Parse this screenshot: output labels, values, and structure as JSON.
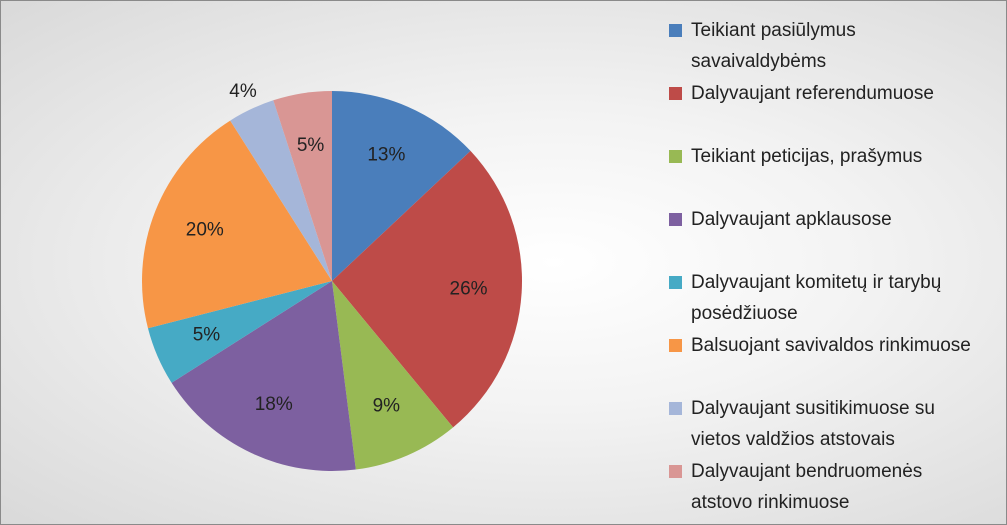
{
  "chart_data": {
    "type": "pie",
    "categories": [
      "Teikiant pasiūlymus savaivaldybėms",
      "Dalyvaujant referendumuose",
      "Teikiant peticijas, prašymus",
      "Dalyvaujant apklausose",
      "Dalyvaujant komitetų ir tarybų posėdžiuose",
      "Balsuojant savivaldos rinkimuose",
      "Dalyvaujant susitikimuose su vietos valdžios atstovais",
      "Dalyvaujant bendruomenės atstovo rinkimuose"
    ],
    "values": [
      13,
      26,
      9,
      18,
      5,
      20,
      4,
      5
    ],
    "value_labels": [
      "13%",
      "26%",
      "9%",
      "18%",
      "5%",
      "20%",
      "4%",
      "5%"
    ],
    "colors": [
      "#4a7ebb",
      "#be4b48",
      "#98b954",
      "#7d60a0",
      "#46aac5",
      "#f79646",
      "#a5b6d9",
      "#d99694"
    ],
    "legend": "right"
  }
}
